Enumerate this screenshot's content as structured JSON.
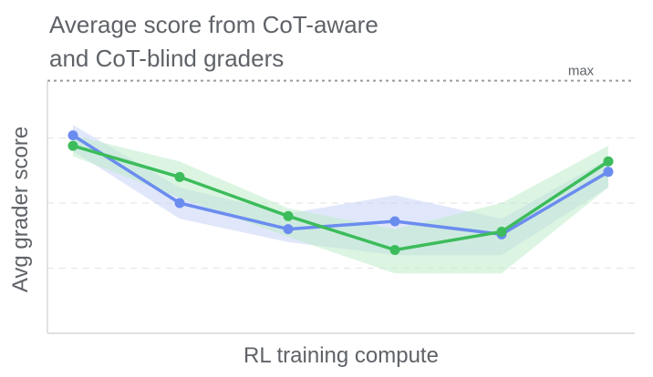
{
  "chart_data": {
    "type": "line",
    "title": [
      "Average score from CoT-aware",
      "and CoT-blind graders"
    ],
    "xlabel": "RL training compute",
    "ylabel": "Avg grader score",
    "max_label": "max",
    "x_tick_labels": false,
    "y_tick_labels": false,
    "grid": "horizontal dashed",
    "legend": "none",
    "x": [
      1,
      2,
      3,
      4,
      5,
      6
    ],
    "ylim": [
      0,
      1
    ],
    "max_value": 0.97,
    "series": [
      {
        "color": "#6b8cef",
        "band_color": "#c9d4f7",
        "values": [
          0.76,
          0.5,
          0.4,
          0.43,
          0.38,
          0.62
        ],
        "lower": [
          0.7,
          0.44,
          0.35,
          0.3,
          0.3,
          0.56
        ],
        "upper": [
          0.8,
          0.56,
          0.46,
          0.53,
          0.44,
          0.67
        ]
      },
      {
        "color": "#3cbc5b",
        "band_color": "#bfeccb",
        "values": [
          0.72,
          0.6,
          0.45,
          0.32,
          0.39,
          0.66
        ],
        "lower": [
          0.68,
          0.52,
          0.37,
          0.23,
          0.23,
          0.56
        ],
        "upper": [
          0.76,
          0.66,
          0.48,
          0.4,
          0.5,
          0.72
        ]
      }
    ]
  }
}
